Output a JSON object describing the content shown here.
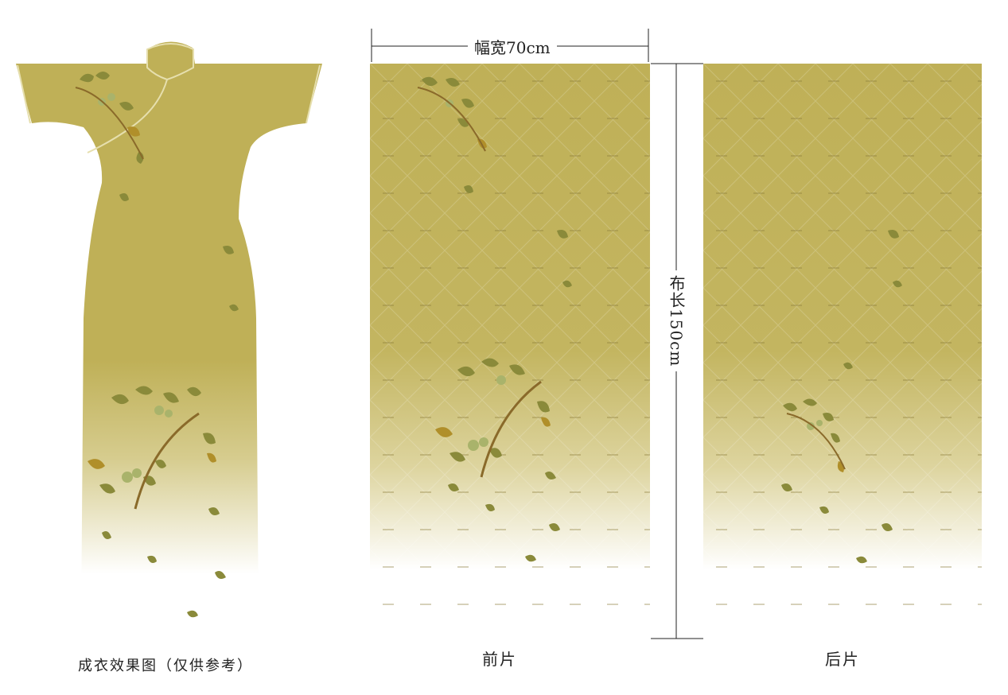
{
  "dimensions": {
    "width_label": "幅宽70cm",
    "length_label": "布长150cm"
  },
  "captions": {
    "dress": "成衣效果图（仅供参考）",
    "front": "前片",
    "back": "后片"
  },
  "colors": {
    "fabric_base": "#bfb057",
    "fabric_light": "#ffffff",
    "leaf": "#8a8a3a",
    "leaf_gold": "#b08f2a",
    "berry": "#a9b36b",
    "branch": "#8a6a2a",
    "trim": "#e6dfae"
  }
}
